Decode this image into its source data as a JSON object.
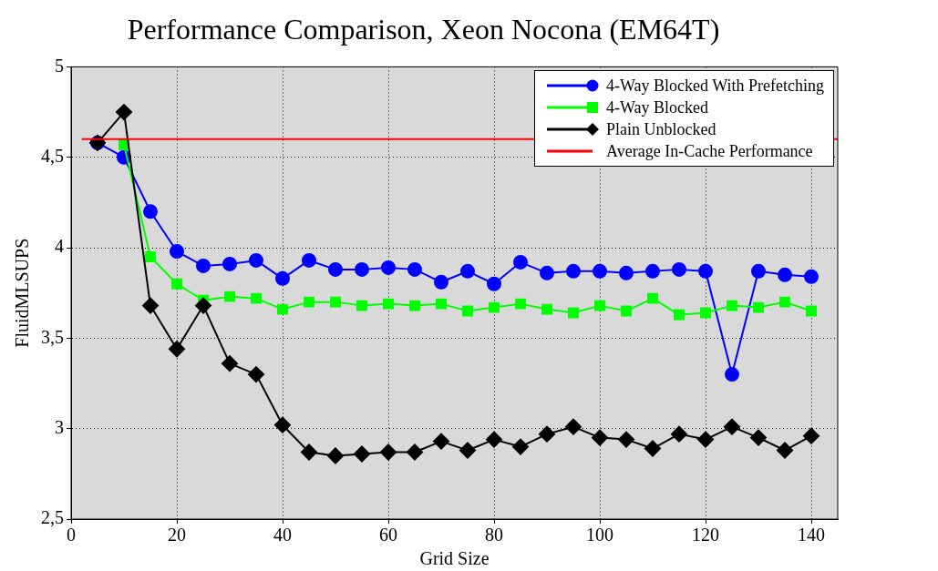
{
  "chart_data": {
    "type": "line",
    "title": "Performance Comparison, Xeon Nocona (EM64T)",
    "xlabel": "Grid Size",
    "ylabel": "FluidMLSUPS",
    "x": [
      5,
      10,
      15,
      20,
      25,
      30,
      35,
      40,
      45,
      50,
      55,
      60,
      65,
      70,
      75,
      80,
      85,
      90,
      95,
      100,
      105,
      110,
      115,
      120,
      125,
      130,
      135,
      140
    ],
    "series": [
      {
        "name": "4-Way Blocked With Prefetching",
        "color": "#0000ff",
        "marker": "circle",
        "values": [
          4.58,
          4.5,
          4.2,
          3.98,
          3.9,
          3.91,
          3.93,
          3.83,
          3.93,
          3.88,
          3.88,
          3.89,
          3.88,
          3.81,
          3.87,
          3.8,
          3.92,
          3.86,
          3.87,
          3.87,
          3.86,
          3.87,
          3.88,
          3.87,
          3.3,
          3.87,
          3.85,
          3.84
        ]
      },
      {
        "name": "4-Way Blocked",
        "color": "#00ff00",
        "marker": "square",
        "values": [
          null,
          4.57,
          3.95,
          3.8,
          3.71,
          3.73,
          3.72,
          3.66,
          3.7,
          3.7,
          3.68,
          3.69,
          3.68,
          3.69,
          3.65,
          3.67,
          3.69,
          3.66,
          3.64,
          3.68,
          3.65,
          3.72,
          3.63,
          3.64,
          3.68,
          3.67,
          3.7,
          3.65
        ]
      },
      {
        "name": "Plain Unblocked",
        "color": "#000000",
        "marker": "diamond",
        "values": [
          4.58,
          4.75,
          3.68,
          3.44,
          3.68,
          3.36,
          3.3,
          3.02,
          2.87,
          2.85,
          2.86,
          2.87,
          2.87,
          2.93,
          2.88,
          2.94,
          2.9,
          2.97,
          3.01,
          2.95,
          2.94,
          2.89,
          2.97,
          2.94,
          3.01,
          2.95,
          2.88,
          2.96
        ]
      },
      {
        "name": "Average In-Cache Performance",
        "color": "#ff0000",
        "marker": "none",
        "x": [
          2,
          145
        ],
        "values": [
          4.6,
          4.6
        ]
      }
    ],
    "xlim": [
      0,
      145
    ],
    "xticks": [
      0,
      20,
      40,
      60,
      80,
      100,
      120,
      140
    ],
    "ylim": [
      2.5,
      5
    ],
    "yticks": [
      {
        "value": 2.5,
        "label": "2,5"
      },
      3,
      {
        "value": 3.5,
        "label": "3,5"
      },
      4,
      {
        "value": 4.5,
        "label": "4,5"
      },
      5
    ],
    "grid": true,
    "legend": "top right",
    "line_style": "solid"
  }
}
